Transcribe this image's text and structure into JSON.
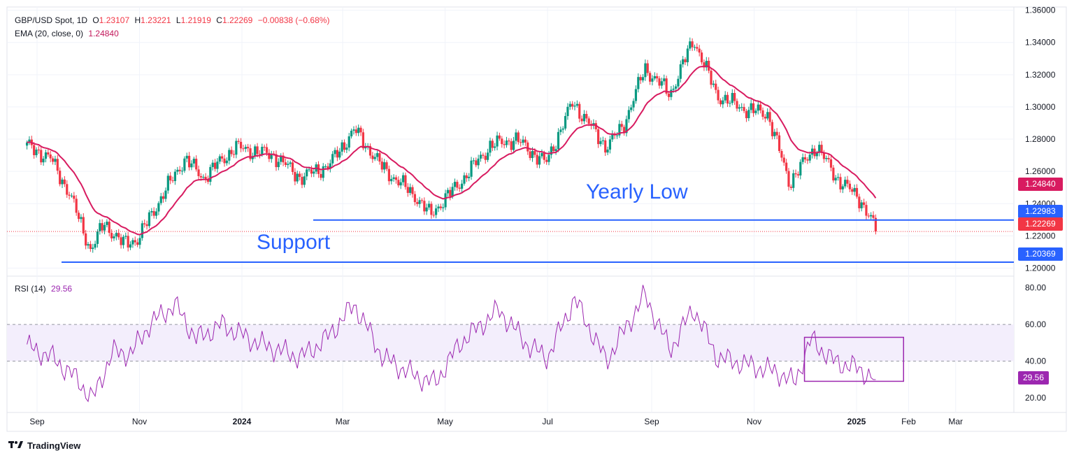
{
  "header": {
    "symbol": "GBP/USD Spot, 1D",
    "o_label": "O",
    "o_value": "1.23107",
    "h_label": "H",
    "h_value": "1.23221",
    "l_label": "L",
    "l_value": "1.21919",
    "c_label": "C",
    "c_value": "1.22269",
    "change": "−0.00838 (−0.68%)",
    "ema_label": "EMA (20, close, 0)",
    "ema_value": "1.24840",
    "rsi_label": "RSI (14)",
    "rsi_value": "29.56"
  },
  "annotations": {
    "yearly_low": "Yearly Low",
    "support": "Support"
  },
  "price_tags": {
    "ema": "1.24840",
    "yearly_low": "1.22983",
    "close": "1.22269",
    "support": "1.20369"
  },
  "footer": {
    "brand": "TradingView"
  },
  "colors": {
    "up": "#089981",
    "down": "#f23645",
    "ema": "#d81b60",
    "rsi": "#9c27b0",
    "level": "#2962ff",
    "rsi_band": "#f3eefc"
  },
  "chart_data": [
    {
      "type": "candlestick",
      "title": "GBP/USD Spot, 1D",
      "x_ticks": [
        "Sep",
        "Nov",
        "2024",
        "Mar",
        "May",
        "Jul",
        "Sep",
        "Nov",
        "2025",
        "Feb",
        "Mar"
      ],
      "y_ticks": [
        "1.36000",
        "1.34000",
        "1.32000",
        "1.30000",
        "1.28000",
        "1.26000",
        "1.24000",
        "1.22000",
        "1.20000"
      ],
      "ylim": [
        1.195,
        1.362
      ],
      "grid": true,
      "series": [
        {
          "name": "EMA (20, close, 0)",
          "last": 1.2484
        },
        {
          "name": "Yearly Low",
          "value": 1.22983,
          "type": "horizontal_line"
        },
        {
          "name": "Support",
          "value": 1.20369,
          "type": "horizontal_line"
        }
      ],
      "close_path": [
        {
          "date": "2023-08-26",
          "close": 1.276
        },
        {
          "date": "2023-09-09",
          "close": 1.268
        },
        {
          "date": "2023-09-20",
          "close": 1.247
        },
        {
          "date": "2023-10-03",
          "close": 1.211
        },
        {
          "date": "2023-10-11",
          "close": 1.228
        },
        {
          "date": "2023-10-22",
          "close": 1.215
        },
        {
          "date": "2023-10-31",
          "close": 1.218
        },
        {
          "date": "2023-11-14",
          "close": 1.244
        },
        {
          "date": "2023-11-28",
          "close": 1.268
        },
        {
          "date": "2023-12-09",
          "close": 1.256
        },
        {
          "date": "2023-12-28",
          "close": 1.275
        },
        {
          "date": "2024-01-20",
          "close": 1.27
        },
        {
          "date": "2024-02-05",
          "close": 1.256
        },
        {
          "date": "2024-02-22",
          "close": 1.264
        },
        {
          "date": "2024-03-08",
          "close": 1.286
        },
        {
          "date": "2024-03-25",
          "close": 1.262
        },
        {
          "date": "2024-04-13",
          "close": 1.245
        },
        {
          "date": "2024-04-22",
          "close": 1.233
        },
        {
          "date": "2024-05-09",
          "close": 1.252
        },
        {
          "date": "2024-05-28",
          "close": 1.276
        },
        {
          "date": "2024-06-12",
          "close": 1.28
        },
        {
          "date": "2024-06-30",
          "close": 1.265
        },
        {
          "date": "2024-07-16",
          "close": 1.303
        },
        {
          "date": "2024-08-05",
          "close": 1.275
        },
        {
          "date": "2024-08-15",
          "close": 1.288
        },
        {
          "date": "2024-08-28",
          "close": 1.324
        },
        {
          "date": "2024-09-12",
          "close": 1.308
        },
        {
          "date": "2024-09-26",
          "close": 1.342
        },
        {
          "date": "2024-10-10",
          "close": 1.307
        },
        {
          "date": "2024-10-28",
          "close": 1.298
        },
        {
          "date": "2024-11-09",
          "close": 1.296
        },
        {
          "date": "2024-11-22",
          "close": 1.253
        },
        {
          "date": "2024-12-08",
          "close": 1.276
        },
        {
          "date": "2024-12-20",
          "close": 1.256
        },
        {
          "date": "2025-01-03",
          "close": 1.243
        },
        {
          "date": "2025-01-13",
          "close": 1.2227
        }
      ]
    },
    {
      "type": "line",
      "title": "RSI (14)",
      "y_ticks": [
        "80.00",
        "60.00",
        "40.00",
        "20.00"
      ],
      "band": [
        40,
        60
      ],
      "ylim": [
        12,
        86
      ],
      "last": 29.56,
      "points": [
        {
          "date": "2023-08-26",
          "value": 48
        },
        {
          "date": "2023-09-10",
          "value": 42
        },
        {
          "date": "2023-09-25",
          "value": 30
        },
        {
          "date": "2023-10-04",
          "value": 19
        },
        {
          "date": "2023-10-16",
          "value": 45
        },
        {
          "date": "2023-10-27",
          "value": 44
        },
        {
          "date": "2023-11-07",
          "value": 60
        },
        {
          "date": "2023-11-22",
          "value": 71
        },
        {
          "date": "2023-12-05",
          "value": 52
        },
        {
          "date": "2023-12-20",
          "value": 60
        },
        {
          "date": "2024-01-10",
          "value": 50
        },
        {
          "date": "2024-02-05",
          "value": 42
        },
        {
          "date": "2024-02-20",
          "value": 52
        },
        {
          "date": "2024-03-08",
          "value": 71
        },
        {
          "date": "2024-03-25",
          "value": 42
        },
        {
          "date": "2024-04-13",
          "value": 32
        },
        {
          "date": "2024-04-25",
          "value": 28
        },
        {
          "date": "2024-05-10",
          "value": 50
        },
        {
          "date": "2024-06-02",
          "value": 68
        },
        {
          "date": "2024-06-20",
          "value": 48
        },
        {
          "date": "2024-07-01",
          "value": 42
        },
        {
          "date": "2024-07-17",
          "value": 74
        },
        {
          "date": "2024-08-05",
          "value": 40
        },
        {
          "date": "2024-08-28",
          "value": 76
        },
        {
          "date": "2024-09-12",
          "value": 46
        },
        {
          "date": "2024-09-26",
          "value": 69
        },
        {
          "date": "2024-10-10",
          "value": 42
        },
        {
          "date": "2024-10-28",
          "value": 38
        },
        {
          "date": "2024-11-15",
          "value": 34
        },
        {
          "date": "2024-11-25",
          "value": 28
        },
        {
          "date": "2024-12-05",
          "value": 52
        },
        {
          "date": "2024-12-18",
          "value": 40
        },
        {
          "date": "2025-01-02",
          "value": 36
        },
        {
          "date": "2025-01-13",
          "value": 29.56
        }
      ],
      "highlight": {
        "from": "2024-12-01",
        "to": "2025-01-29",
        "low": 29,
        "high": 53
      }
    }
  ]
}
